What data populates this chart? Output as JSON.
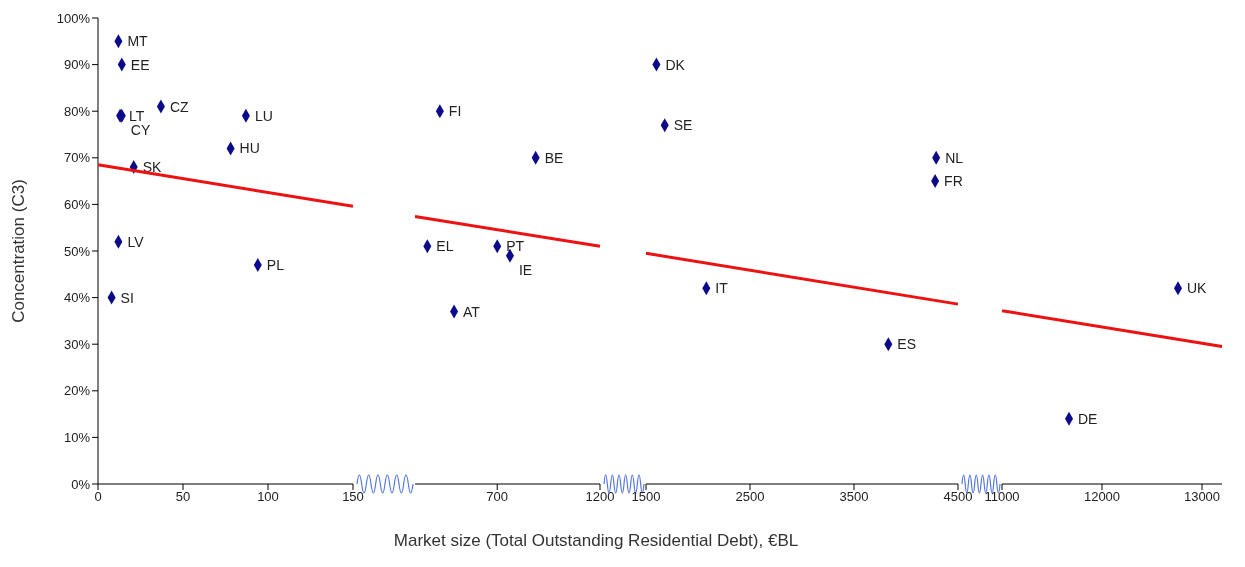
{
  "chart_data": [
    {
      "type": "scatter",
      "ylabel": "Concentration (C3)",
      "xlim": [
        0,
        150
      ],
      "ylim": [
        0,
        100
      ],
      "xticks": [
        0,
        50,
        100,
        150
      ],
      "yticks": [
        {
          "value": 0,
          "label": "0%"
        },
        {
          "value": 10,
          "label": "10%"
        },
        {
          "value": 20,
          "label": "20%"
        },
        {
          "value": 30,
          "label": "30%"
        },
        {
          "value": 40,
          "label": "40%"
        },
        {
          "value": 50,
          "label": "50%"
        },
        {
          "value": 60,
          "label": "60%"
        },
        {
          "value": 70,
          "label": "70%"
        },
        {
          "value": 80,
          "label": "80%"
        },
        {
          "value": 90,
          "label": "90%"
        },
        {
          "value": 100,
          "label": "100%"
        }
      ],
      "grid": false,
      "marker": "diamond",
      "series": [
        {
          "name": "MT",
          "color": "#0b0b8a",
          "x": [
            12
          ],
          "values": [
            95
          ]
        },
        {
          "name": "EE",
          "color": "#0b0b8a",
          "x": [
            14
          ],
          "values": [
            90
          ]
        },
        {
          "name": "LT",
          "color": "#0b0b8a",
          "x": [
            13
          ],
          "values": [
            79
          ]
        },
        {
          "name": "CY",
          "color": "#0b0b8a",
          "x": [
            14
          ],
          "values": [
            79
          ]
        },
        {
          "name": "CZ",
          "color": "#0b0b8a",
          "x": [
            37
          ],
          "values": [
            81
          ]
        },
        {
          "name": "LU",
          "color": "#0b0b8a",
          "x": [
            87
          ],
          "values": [
            79
          ]
        },
        {
          "name": "HU",
          "color": "#0b0b8a",
          "x": [
            78
          ],
          "values": [
            72
          ]
        },
        {
          "name": "SK",
          "color": "#0b0b8a",
          "x": [
            21
          ],
          "values": [
            68
          ]
        },
        {
          "name": "LV",
          "color": "#0b0b8a",
          "x": [
            12
          ],
          "values": [
            52
          ]
        },
        {
          "name": "SI",
          "color": "#0b0b8a",
          "x": [
            8
          ],
          "values": [
            40
          ]
        },
        {
          "name": "PL",
          "color": "#0b0b8a",
          "x": [
            94
          ],
          "values": [
            47
          ]
        },
        {
          "type": "line",
          "marker": "none",
          "color": "#ee1111",
          "x": [
            0,
            150
          ],
          "values": [
            68.5,
            59.6
          ]
        }
      ]
    },
    {
      "type": "scatter",
      "xlim": [
        300,
        1200
      ],
      "ylim": [
        0,
        100
      ],
      "xticks": [
        700,
        1200
      ],
      "tick_labels": "x",
      "grid": false,
      "marker": "diamond",
      "series": [
        {
          "name": "FI",
          "color": "#0b0b8a",
          "x": [
            421
          ],
          "values": [
            80
          ]
        },
        {
          "name": "BE",
          "color": "#0b0b8a",
          "x": [
            887
          ],
          "values": [
            70
          ]
        },
        {
          "name": "EL",
          "color": "#0b0b8a",
          "x": [
            360
          ],
          "values": [
            51
          ]
        },
        {
          "name": "PT",
          "color": "#0b0b8a",
          "x": [
            700
          ],
          "values": [
            51
          ]
        },
        {
          "name": "IE",
          "color": "#0b0b8a",
          "x": [
            762
          ],
          "values": [
            49
          ]
        },
        {
          "name": "AT",
          "color": "#0b0b8a",
          "x": [
            490
          ],
          "values": [
            37
          ]
        },
        {
          "type": "line",
          "marker": "none",
          "color": "#ee1111",
          "x": [
            300,
            1200
          ],
          "values": [
            57.4,
            51.0
          ]
        }
      ]
    },
    {
      "type": "scatter",
      "xlabel": "Market size (Total Outstanding Residential Debt), €BL",
      "xlim": [
        1500,
        4500
      ],
      "ylim": [
        0,
        100
      ],
      "xticks": [
        1500,
        2500,
        3500,
        4500
      ],
      "tick_labels": "x",
      "grid": false,
      "marker": "diamond",
      "series": [
        {
          "name": "DK",
          "color": "#0b0b8a",
          "x": [
            1600
          ],
          "values": [
            90
          ]
        },
        {
          "name": "SE",
          "color": "#0b0b8a",
          "x": [
            1680
          ],
          "values": [
            77
          ]
        },
        {
          "name": "IT",
          "color": "#0b0b8a",
          "x": [
            2080
          ],
          "values": [
            42
          ]
        },
        {
          "name": "NL",
          "color": "#0b0b8a",
          "x": [
            4290
          ],
          "values": [
            70
          ]
        },
        {
          "name": "FR",
          "color": "#0b0b8a",
          "x": [
            4280
          ],
          "values": [
            65
          ]
        },
        {
          "name": "ES",
          "color": "#0b0b8a",
          "x": [
            3830
          ],
          "values": [
            30
          ]
        },
        {
          "type": "line",
          "marker": "none",
          "color": "#ee1111",
          "x": [
            1500,
            4500
          ],
          "values": [
            49.5,
            38.6
          ]
        }
      ]
    },
    {
      "type": "scatter",
      "xlim": [
        11000,
        13200
      ],
      "ylim": [
        0,
        100
      ],
      "xticks": [
        11000,
        12000,
        13000
      ],
      "tick_labels": "x",
      "grid": false,
      "marker": "diamond",
      "series": [
        {
          "name": "DE",
          "color": "#0b0b8a",
          "x": [
            11670
          ],
          "values": [
            14
          ]
        },
        {
          "name": "UK",
          "color": "#0b0b8a",
          "x": [
            12760
          ],
          "values": [
            42
          ]
        },
        {
          "type": "line",
          "marker": "none",
          "color": "#ee1111",
          "x": [
            11000,
            13200
          ],
          "values": [
            37.2,
            29.5
          ]
        }
      ]
    }
  ]
}
